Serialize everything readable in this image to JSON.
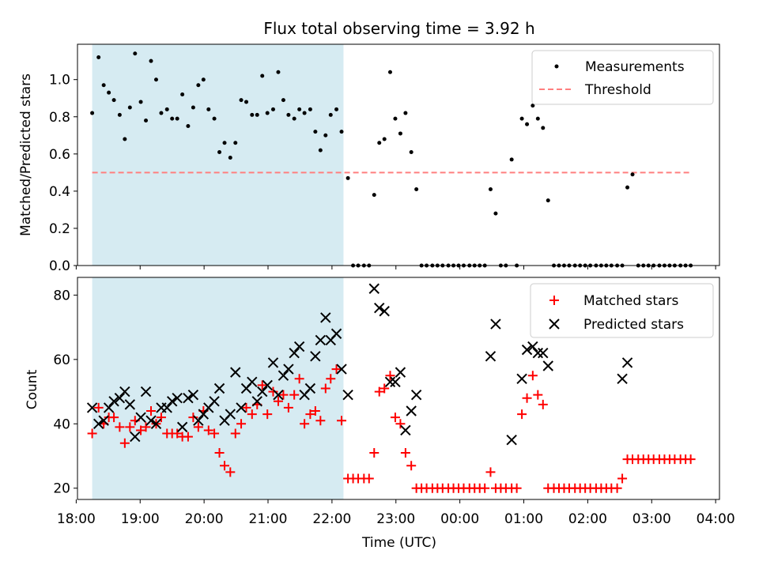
{
  "figure_title": "Flux total observing time = 3.92 h",
  "colors": {
    "shade": "#add8e6",
    "threshold": "#ff7f7f",
    "matched": "#ff0000",
    "predicted": "#000000",
    "measurement": "#000000"
  },
  "chart_data": [
    {
      "type": "scatter",
      "title": "Flux total observing time = 3.92 h",
      "ylabel": "Matched/Predicted stars",
      "xlabel": "",
      "xlim": [
        18.02,
        28.06
      ],
      "ylim": [
        0,
        1.19
      ],
      "yticks": [
        0.0,
        0.2,
        0.4,
        0.6,
        0.8,
        1.0
      ],
      "ytick_labels": [
        "0.0",
        "0.2",
        "0.4",
        "0.6",
        "0.8",
        "1.0"
      ],
      "shaded_span": [
        18.25,
        22.18
      ],
      "threshold": {
        "name": "Threshold",
        "value": 0.5,
        "x_range": [
          18.25,
          27.6
        ]
      },
      "legend": {
        "position": "top-right",
        "entries": [
          "Measurements",
          "Threshold"
        ]
      },
      "series": [
        {
          "name": "Measurements",
          "x": [
            18.25,
            18.35,
            18.43,
            18.51,
            18.59,
            18.68,
            18.76,
            18.84,
            18.92,
            19.01,
            19.09,
            19.17,
            19.25,
            19.33,
            19.42,
            19.5,
            19.58,
            19.66,
            19.75,
            19.83,
            19.91,
            19.99,
            20.07,
            20.16,
            20.24,
            20.32,
            20.41,
            20.49,
            20.58,
            20.66,
            20.75,
            20.83,
            20.91,
            20.99,
            21.08,
            21.16,
            21.24,
            21.32,
            21.41,
            21.49,
            21.57,
            21.66,
            21.74,
            21.82,
            21.9,
            21.98,
            22.07,
            22.15,
            22.25,
            22.33,
            22.41,
            22.5,
            22.58,
            22.66,
            22.74,
            22.82,
            22.91,
            22.99,
            23.07,
            23.15,
            23.24,
            23.32,
            23.4,
            23.48,
            23.57,
            23.65,
            23.73,
            23.82,
            23.9,
            23.98,
            24.06,
            24.15,
            24.23,
            24.31,
            24.39,
            24.48,
            24.56,
            24.64,
            24.72,
            24.81,
            24.89,
            24.97,
            25.05,
            25.14,
            25.22,
            25.3,
            25.38,
            25.47,
            25.55,
            25.63,
            25.71,
            25.8,
            25.88,
            25.96,
            26.04,
            26.13,
            26.21,
            26.29,
            26.37,
            26.46,
            26.54,
            26.62,
            26.7,
            26.79,
            26.87,
            26.95,
            27.03,
            27.12,
            27.2,
            27.28,
            27.36,
            27.45,
            27.53,
            27.61
          ],
          "y": [
            0.82,
            1.12,
            0.97,
            0.93,
            0.89,
            0.81,
            0.68,
            0.85,
            1.14,
            0.88,
            0.78,
            1.1,
            1.0,
            0.82,
            0.84,
            0.79,
            0.79,
            0.92,
            0.75,
            0.85,
            0.97,
            1.0,
            0.84,
            0.79,
            0.61,
            0.66,
            0.58,
            0.66,
            0.89,
            0.88,
            0.81,
            0.81,
            1.02,
            0.82,
            0.84,
            1.04,
            0.89,
            0.81,
            0.79,
            0.84,
            0.82,
            0.84,
            0.72,
            0.62,
            0.7,
            0.81,
            0.84,
            0.72,
            0.47,
            0.0,
            0.0,
            0.0,
            0.0,
            0.38,
            0.66,
            0.68,
            1.04,
            0.79,
            0.71,
            0.82,
            0.61,
            0.41,
            0.0,
            0.0,
            0.0,
            0.0,
            0.0,
            0.0,
            0.0,
            0.0,
            0.0,
            0.0,
            0.0,
            0.0,
            0.0,
            0.41,
            0.28,
            0.0,
            0.0,
            0.57,
            0.0,
            0.79,
            0.76,
            0.86,
            0.79,
            0.74,
            0.35,
            0.0,
            0.0,
            0.0,
            0.0,
            0.0,
            0.0,
            0.0,
            0.0,
            0.0,
            0.0,
            0.0,
            0.0,
            0.0,
            0.0,
            0.42,
            0.49,
            0.0,
            0.0,
            0.0,
            0.0,
            0.0,
            0.0,
            0.0,
            0.0,
            0.0,
            0.0,
            0.0
          ]
        }
      ]
    },
    {
      "type": "scatter",
      "title": "",
      "xlabel": "Time (UTC)",
      "ylabel": "Count",
      "xlim": [
        18.02,
        28.06
      ],
      "ylim": [
        16.5,
        85.5
      ],
      "yticks": [
        20,
        40,
        60,
        80
      ],
      "ytick_labels": [
        "20",
        "40",
        "60",
        "80"
      ],
      "xticks": [
        18,
        19,
        20,
        21,
        22,
        23,
        24,
        25,
        26,
        27,
        28
      ],
      "xtick_labels": [
        "18:00",
        "19:00",
        "20:00",
        "21:00",
        "22:00",
        "23:00",
        "00:00",
        "01:00",
        "02:00",
        "03:00",
        "04:00"
      ],
      "shaded_span": [
        18.25,
        22.18
      ],
      "legend": {
        "position": "top-right",
        "entries": [
          "Matched stars",
          "Predicted stars"
        ]
      },
      "series": [
        {
          "name": "Matched stars",
          "marker": "+",
          "x": [
            18.25,
            18.35,
            18.43,
            18.51,
            18.59,
            18.68,
            18.76,
            18.84,
            18.92,
            19.01,
            19.09,
            19.17,
            19.25,
            19.33,
            19.42,
            19.5,
            19.58,
            19.66,
            19.75,
            19.83,
            19.91,
            19.99,
            20.07,
            20.16,
            20.24,
            20.32,
            20.41,
            20.49,
            20.58,
            20.66,
            20.75,
            20.83,
            20.91,
            20.99,
            21.08,
            21.16,
            21.24,
            21.32,
            21.41,
            21.49,
            21.57,
            21.66,
            21.74,
            21.82,
            21.9,
            21.98,
            22.07,
            22.15,
            22.25,
            22.33,
            22.41,
            22.5,
            22.58,
            22.66,
            22.74,
            22.82,
            22.91,
            22.99,
            23.07,
            23.15,
            23.24,
            23.32,
            23.4,
            23.48,
            23.57,
            23.65,
            23.73,
            23.82,
            23.9,
            23.98,
            24.06,
            24.15,
            24.23,
            24.31,
            24.39,
            24.48,
            24.56,
            24.64,
            24.72,
            24.81,
            24.89,
            24.97,
            25.05,
            25.14,
            25.22,
            25.3,
            25.38,
            25.47,
            25.55,
            25.63,
            25.71,
            25.8,
            25.88,
            25.96,
            26.04,
            26.13,
            26.21,
            26.29,
            26.37,
            26.46,
            26.54,
            26.62,
            26.7,
            26.79,
            26.87,
            26.95,
            27.03,
            27.12,
            27.2,
            27.28,
            27.36,
            27.45,
            27.53,
            27.61
          ],
          "y": [
            37,
            45,
            40,
            42,
            42,
            39,
            34,
            39,
            41,
            38,
            39,
            44,
            40,
            42,
            37,
            37,
            37,
            36,
            36,
            42,
            39,
            44,
            38,
            37,
            31,
            27,
            25,
            37,
            40,
            45,
            43,
            46,
            52,
            43,
            50,
            47,
            49,
            45,
            49,
            54,
            40,
            43,
            44,
            41,
            51,
            54,
            57,
            41,
            23,
            23,
            23,
            23,
            23,
            31,
            50,
            51,
            55,
            42,
            40,
            31,
            27,
            20,
            20,
            20,
            20,
            20,
            20,
            20,
            20,
            20,
            20,
            20,
            20,
            20,
            20,
            25,
            20,
            20,
            20,
            20,
            20,
            43,
            48,
            55,
            49,
            46,
            20,
            20,
            20,
            20,
            20,
            20,
            20,
            20,
            20,
            20,
            20,
            20,
            20,
            20,
            23,
            29,
            29,
            29,
            29,
            29,
            29,
            29,
            29,
            29,
            29,
            29,
            29,
            29
          ]
        },
        {
          "name": "Predicted stars",
          "marker": "x",
          "x": [
            18.25,
            18.35,
            18.43,
            18.51,
            18.59,
            18.68,
            18.76,
            18.84,
            18.92,
            19.01,
            19.09,
            19.17,
            19.25,
            19.33,
            19.42,
            19.5,
            19.58,
            19.66,
            19.75,
            19.83,
            19.91,
            19.99,
            20.07,
            20.16,
            20.24,
            20.32,
            20.41,
            20.49,
            20.58,
            20.66,
            20.75,
            20.83,
            20.91,
            20.99,
            21.08,
            21.16,
            21.24,
            21.32,
            21.41,
            21.49,
            21.57,
            21.66,
            21.74,
            21.82,
            21.9,
            21.98,
            22.07,
            22.15,
            22.25,
            22.66,
            22.74,
            22.82,
            22.91,
            22.99,
            23.07,
            23.15,
            23.24,
            23.32,
            24.48,
            24.56,
            24.81,
            24.97,
            25.05,
            25.14,
            25.22,
            25.3,
            25.38,
            26.54,
            26.62
          ],
          "y": [
            45,
            40,
            41,
            45,
            47,
            48,
            50,
            46,
            36,
            42,
            50,
            41,
            40,
            45,
            45,
            47,
            48,
            39,
            48,
            49,
            41,
            43,
            45,
            47,
            51,
            41,
            43,
            56,
            45,
            51,
            53,
            47,
            50,
            52,
            59,
            49,
            55,
            57,
            62,
            64,
            49,
            51,
            61,
            66,
            73,
            66,
            68,
            57,
            49,
            82,
            76,
            75,
            53,
            53,
            56,
            38,
            44,
            49,
            61,
            71,
            35,
            54,
            63,
            64,
            62,
            62,
            58,
            54,
            59
          ]
        }
      ]
    }
  ]
}
